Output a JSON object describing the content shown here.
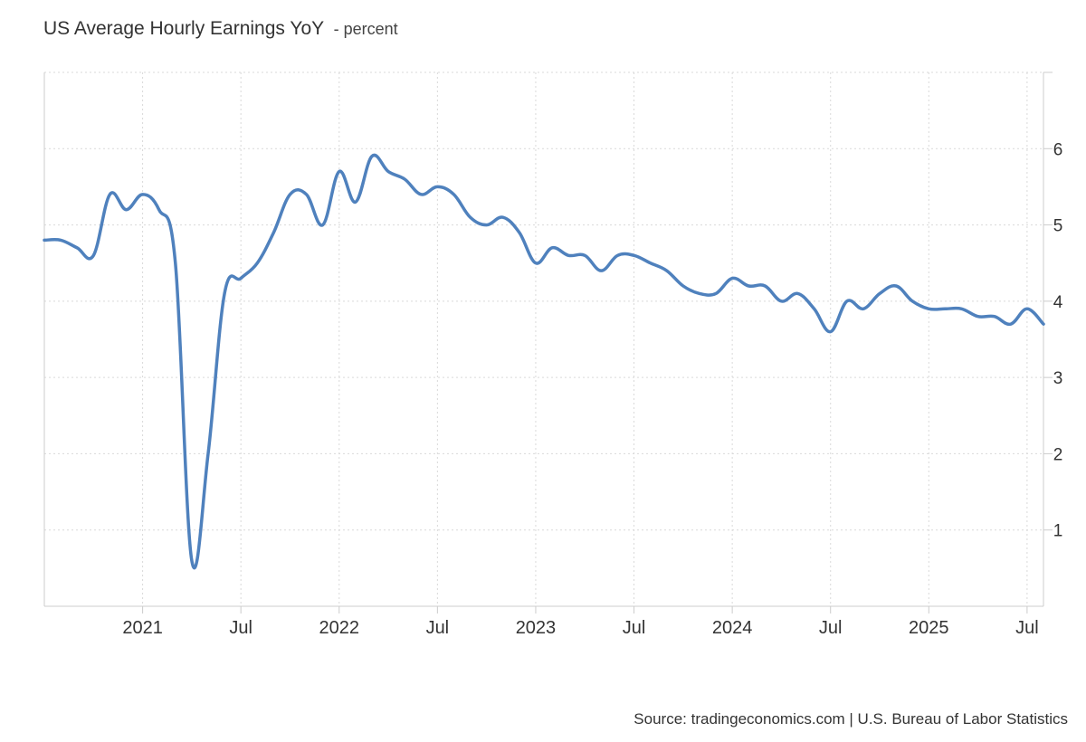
{
  "title": "US Average Hourly Earnings YoY",
  "unit_label": "- percent",
  "source": "Source: tradingeconomics.com | U.S. Bureau of Labor Statistics",
  "colors": {
    "line": "#4f81bd",
    "grid": "#d9d9d9",
    "axis": "#cccccc",
    "text": "#333333"
  },
  "chart_data": {
    "type": "line",
    "title": "US Average Hourly Earnings YoY",
    "xlabel": "",
    "ylabel": "percent",
    "y_ticks": [
      1,
      2,
      3,
      4,
      5,
      6
    ],
    "ylim": [
      0,
      7
    ],
    "y_axis_side": "right",
    "grid": true,
    "x_tick_labels": [
      {
        "label": "2021",
        "date": "2021-01"
      },
      {
        "label": "Jul",
        "date": "2021-07"
      },
      {
        "label": "2022",
        "date": "2022-01"
      },
      {
        "label": "Jul",
        "date": "2022-07"
      },
      {
        "label": "2023",
        "date": "2023-01"
      },
      {
        "label": "Jul",
        "date": "2023-07"
      },
      {
        "label": "2024",
        "date": "2024-01"
      },
      {
        "label": "Jul",
        "date": "2024-07"
      },
      {
        "label": "2025",
        "date": "2025-01"
      },
      {
        "label": "Jul",
        "date": "2025-07"
      }
    ],
    "x_range": [
      "2020-07",
      "2025-08"
    ],
    "series": [
      {
        "points": [
          [
            "2020-07",
            4.8
          ],
          [
            "2020-08",
            4.8
          ],
          [
            "2020-09",
            4.7
          ],
          [
            "2020-10",
            4.6
          ],
          [
            "2020-11",
            5.4
          ],
          [
            "2020-12",
            5.2
          ],
          [
            "2021-01",
            5.4
          ],
          [
            "2021-02",
            5.2
          ],
          [
            "2021-03",
            4.5
          ],
          [
            "2021-04",
            0.6
          ],
          [
            "2021-05",
            2.0
          ],
          [
            "2021-06",
            4.1
          ],
          [
            "2021-07",
            4.3
          ],
          [
            "2021-08",
            4.5
          ],
          [
            "2021-09",
            4.9
          ],
          [
            "2021-10",
            5.4
          ],
          [
            "2021-11",
            5.4
          ],
          [
            "2021-12",
            5.0
          ],
          [
            "2022-01",
            5.7
          ],
          [
            "2022-02",
            5.3
          ],
          [
            "2022-03",
            5.9
          ],
          [
            "2022-04",
            5.7
          ],
          [
            "2022-05",
            5.6
          ],
          [
            "2022-06",
            5.4
          ],
          [
            "2022-07",
            5.5
          ],
          [
            "2022-08",
            5.4
          ],
          [
            "2022-09",
            5.1
          ],
          [
            "2022-10",
            5.0
          ],
          [
            "2022-11",
            5.1
          ],
          [
            "2022-12",
            4.9
          ],
          [
            "2023-01",
            4.5
          ],
          [
            "2023-02",
            4.7
          ],
          [
            "2023-03",
            4.6
          ],
          [
            "2023-04",
            4.6
          ],
          [
            "2023-05",
            4.4
          ],
          [
            "2023-06",
            4.6
          ],
          [
            "2023-07",
            4.6
          ],
          [
            "2023-08",
            4.5
          ],
          [
            "2023-09",
            4.4
          ],
          [
            "2023-10",
            4.2
          ],
          [
            "2023-11",
            4.1
          ],
          [
            "2023-12",
            4.1
          ],
          [
            "2024-01",
            4.3
          ],
          [
            "2024-02",
            4.2
          ],
          [
            "2024-03",
            4.2
          ],
          [
            "2024-04",
            4.0
          ],
          [
            "2024-05",
            4.1
          ],
          [
            "2024-06",
            3.9
          ],
          [
            "2024-07",
            3.6
          ],
          [
            "2024-08",
            4.0
          ],
          [
            "2024-09",
            3.9
          ],
          [
            "2024-10",
            4.1
          ],
          [
            "2024-11",
            4.2
          ],
          [
            "2024-12",
            4.0
          ],
          [
            "2025-01",
            3.9
          ],
          [
            "2025-02",
            3.9
          ],
          [
            "2025-03",
            3.9
          ],
          [
            "2025-04",
            3.8
          ],
          [
            "2025-05",
            3.8
          ],
          [
            "2025-06",
            3.7
          ],
          [
            "2025-07",
            3.9
          ],
          [
            "2025-08",
            3.7
          ]
        ]
      }
    ]
  }
}
